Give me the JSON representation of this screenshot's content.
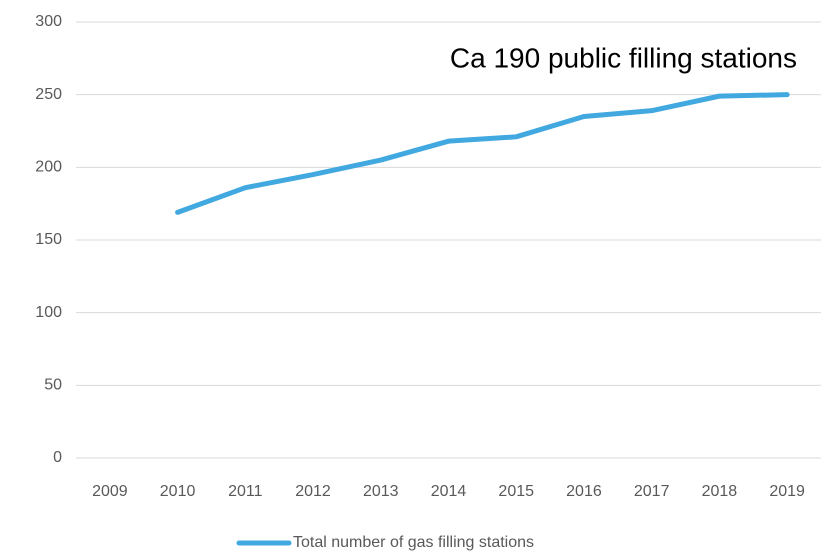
{
  "chart_data": {
    "type": "line",
    "annotation": "Ca 190 public filling stations",
    "categories": [
      "2009",
      "2010",
      "2011",
      "2012",
      "2013",
      "2014",
      "2015",
      "2016",
      "2017",
      "2018",
      "2019"
    ],
    "series": [
      {
        "name": "Total number of gas filling stations",
        "color": "#41a8e0",
        "values": [
          null,
          169,
          186,
          195,
          205,
          218,
          221,
          235,
          239,
          249,
          250
        ]
      }
    ],
    "ylim": [
      0,
      300
    ],
    "yticks": [
      0,
      50,
      100,
      150,
      200,
      250,
      300
    ],
    "grid": true,
    "legend": "bottom"
  }
}
